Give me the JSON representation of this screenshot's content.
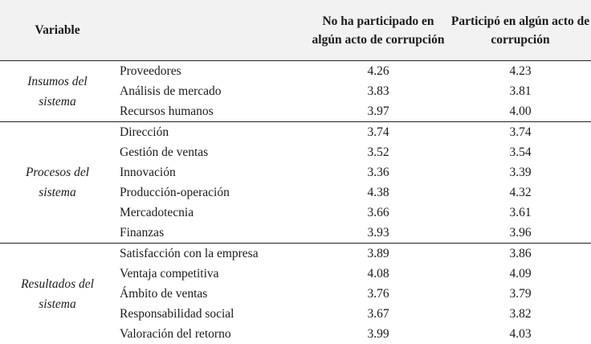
{
  "header": {
    "variable": "Variable",
    "col_no": "No ha participado en algún acto de corrupción",
    "col_si": "Participó en algún acto de corrupción"
  },
  "groups": [
    {
      "label": "Insumos del sistema",
      "rows": [
        {
          "name": "Proveedores",
          "no": "4.26",
          "si": "4.23"
        },
        {
          "name": "Análisis de mercado",
          "no": "3.83",
          "si": "3.81"
        },
        {
          "name": "Recursos humanos",
          "no": "3.97",
          "si": "4.00"
        }
      ]
    },
    {
      "label": "Procesos del sistema",
      "rows": [
        {
          "name": "Dirección",
          "no": "3.74",
          "si": "3.74"
        },
        {
          "name": "Gestión de ventas",
          "no": "3.52",
          "si": "3.54"
        },
        {
          "name": "Innovación",
          "no": "3.36",
          "si": "3.39"
        },
        {
          "name": "Producción-operación",
          "no": "4.38",
          "si": "4.32"
        },
        {
          "name": "Mercadotecnia",
          "no": "3.66",
          "si": "3.61"
        },
        {
          "name": "Finanzas",
          "no": "3.93",
          "si": "3.96"
        }
      ]
    },
    {
      "label": "Resultados del sistema",
      "rows": [
        {
          "name": "Satisfacción con la empresa",
          "no": "3.89",
          "si": "3.86"
        },
        {
          "name": "Ventaja competitiva",
          "no": "4.08",
          "si": "4.09"
        },
        {
          "name": "Ámbito de ventas",
          "no": "3.76",
          "si": "3.79"
        },
        {
          "name": "Responsabilidad social",
          "no": "3.67",
          "si": "3.82"
        },
        {
          "name": "Valoración del retorno",
          "no": "3.99",
          "si": "4.03"
        }
      ]
    }
  ]
}
